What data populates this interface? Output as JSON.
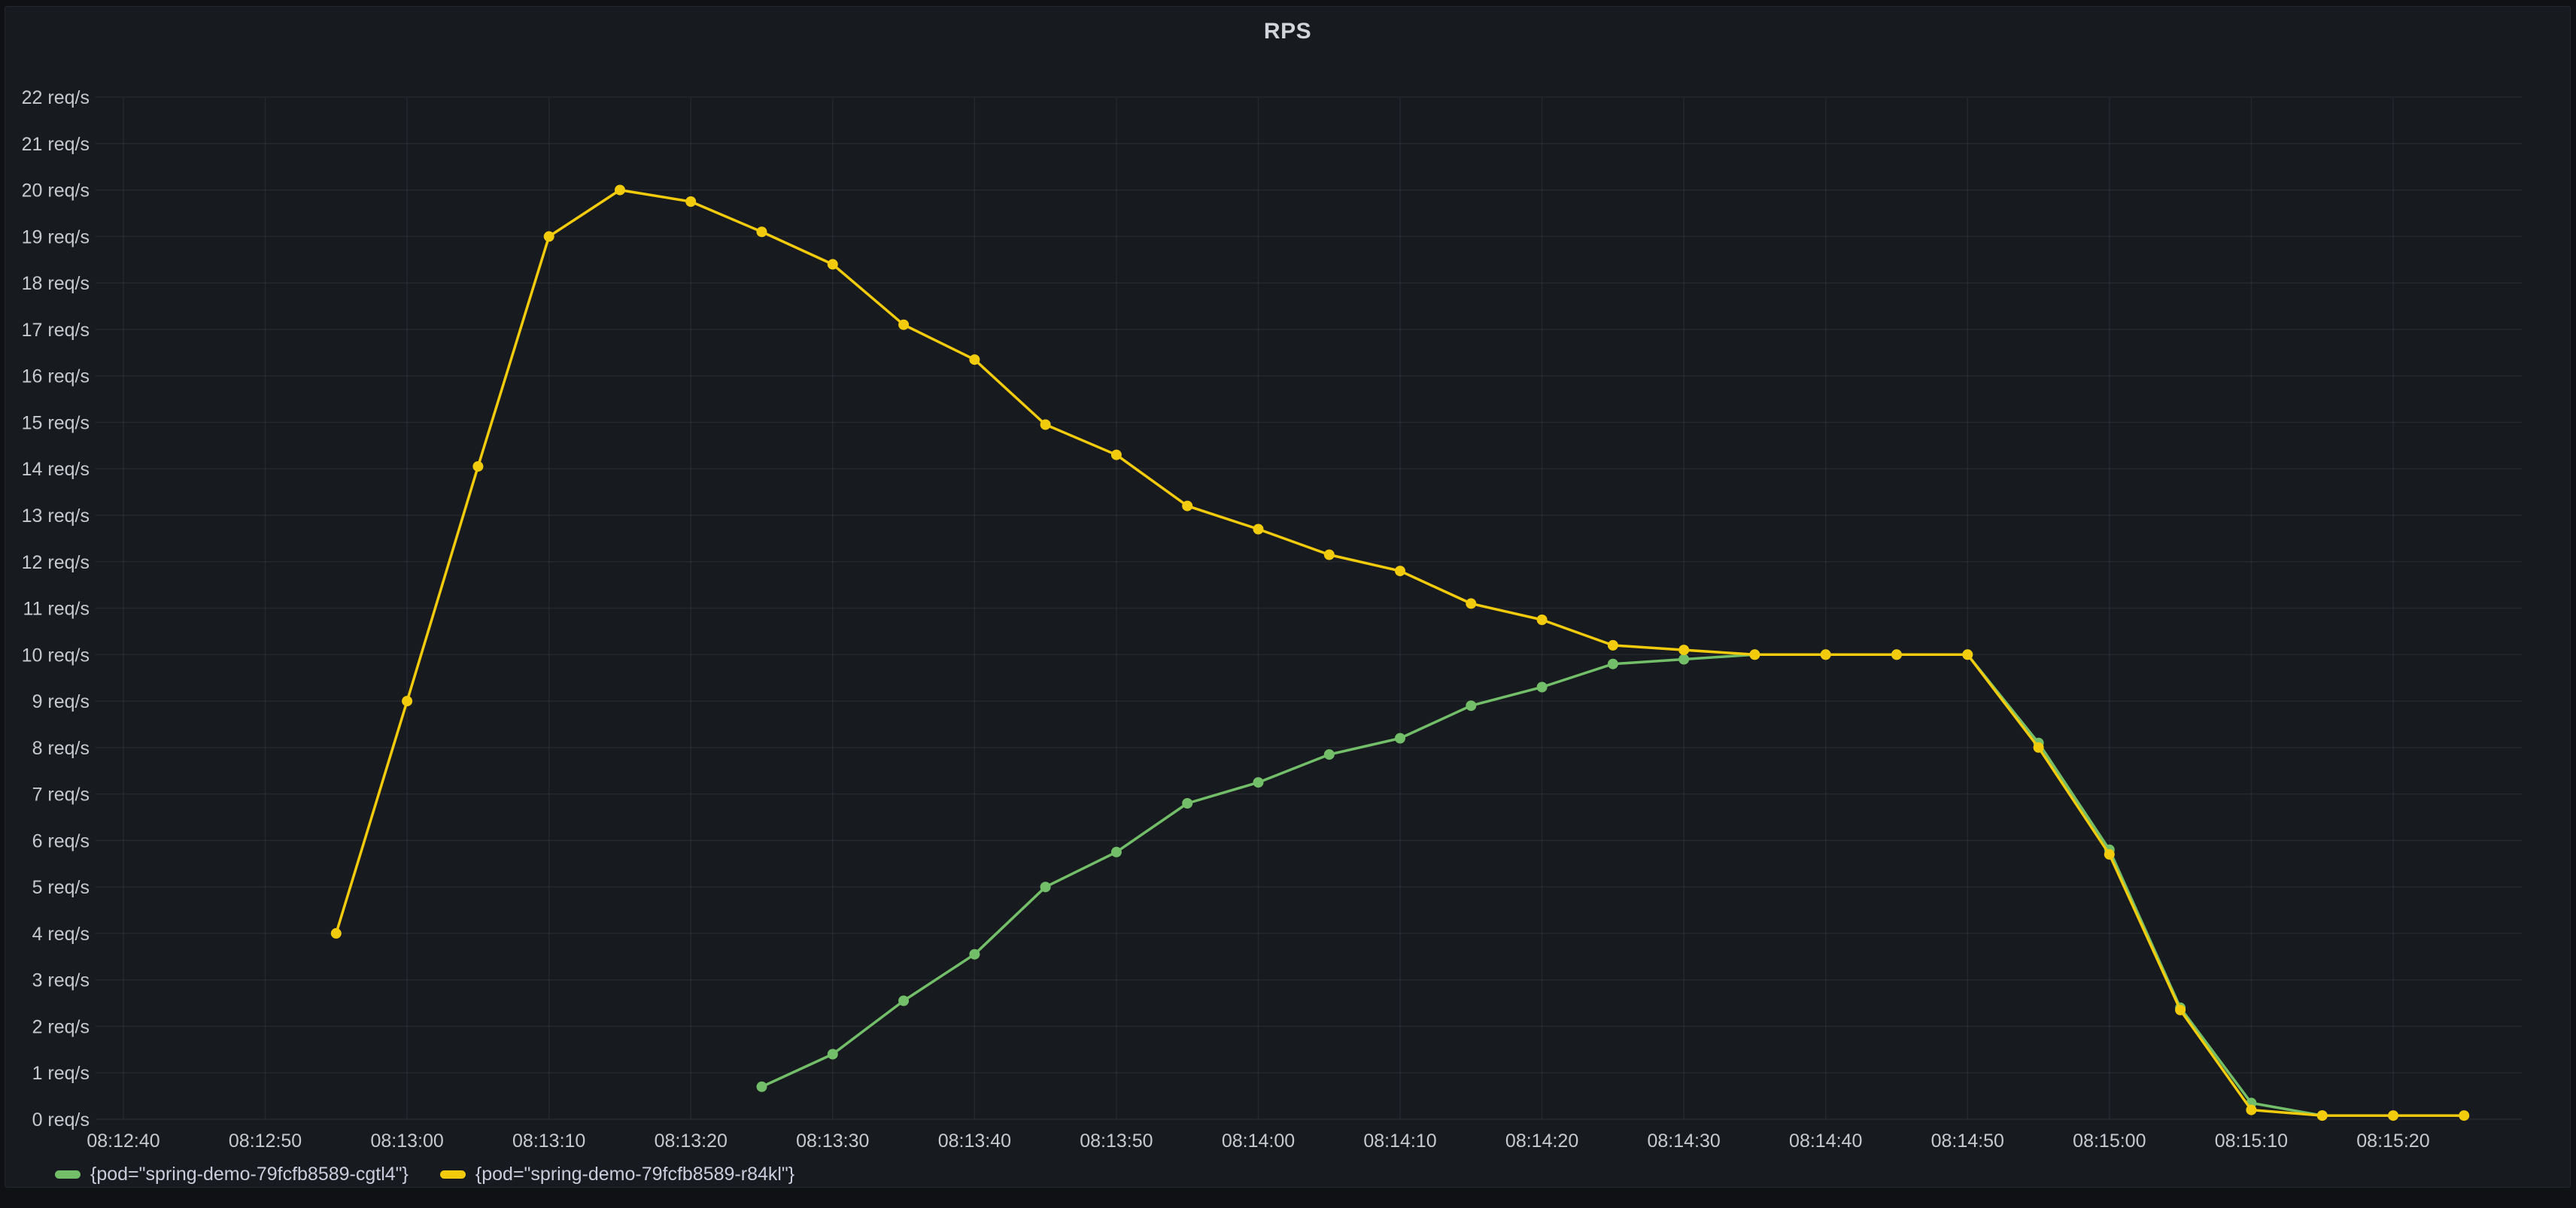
{
  "panel": {
    "title": "RPS"
  },
  "colors": {
    "page_background": "#0f1115",
    "panel_background": "#171a1f",
    "panel_border": "#23262c",
    "grid": "rgba(204,204,220,0.08)",
    "tick_text": "#c7c9cf",
    "title_text": "#d3d5db",
    "series_green": "#73BF69",
    "series_yellow": "#F2CC0C"
  },
  "chart_data": {
    "type": "line",
    "title": "RPS",
    "unit": "req/s",
    "grid": true,
    "legend_position": "bottom-left",
    "ylim": [
      0,
      22
    ],
    "y_ticks": [
      "0 req/s",
      "1 req/s",
      "2 req/s",
      "3 req/s",
      "4 req/s",
      "5 req/s",
      "6 req/s",
      "7 req/s",
      "8 req/s",
      "9 req/s",
      "10 req/s",
      "11 req/s",
      "12 req/s",
      "13 req/s",
      "14 req/s",
      "15 req/s",
      "16 req/s",
      "17 req/s",
      "18 req/s",
      "19 req/s",
      "20 req/s",
      "21 req/s",
      "22 req/s"
    ],
    "x_ticks": [
      "08:12:40",
      "08:12:50",
      "08:13:00",
      "08:13:10",
      "08:13:20",
      "08:13:30",
      "08:13:40",
      "08:13:50",
      "08:14:00",
      "08:14:10",
      "08:14:20",
      "08:14:30",
      "08:14:40",
      "08:14:50",
      "08:15:00",
      "08:15:10",
      "08:15:20"
    ],
    "series": [
      {
        "name": "{pod=\"spring-demo-79fcfb8589-cgtl4\"}",
        "color": "#73BF69",
        "points": [
          [
            "08:13:25",
            0.7
          ],
          [
            "08:13:30",
            1.4
          ],
          [
            "08:13:35",
            2.55
          ],
          [
            "08:13:40",
            3.55
          ],
          [
            "08:13:45",
            5.0
          ],
          [
            "08:13:50",
            5.75
          ],
          [
            "08:13:55",
            6.8
          ],
          [
            "08:14:00",
            7.25
          ],
          [
            "08:14:05",
            7.85
          ],
          [
            "08:14:10",
            8.2
          ],
          [
            "08:14:15",
            8.9
          ],
          [
            "08:14:20",
            9.3
          ],
          [
            "08:14:25",
            9.8
          ],
          [
            "08:14:30",
            9.9
          ],
          [
            "08:14:35",
            10.0
          ],
          [
            "08:14:40",
            10.0
          ],
          [
            "08:14:45",
            10.0
          ],
          [
            "08:14:50",
            10.0
          ],
          [
            "08:14:55",
            8.1
          ],
          [
            "08:15:00",
            5.8
          ],
          [
            "08:15:05",
            2.4
          ],
          [
            "08:15:10",
            0.35
          ],
          [
            "08:15:15",
            0.08
          ]
        ]
      },
      {
        "name": "{pod=\"spring-demo-79fcfb8589-r84kl\"}",
        "color": "#F2CC0C",
        "points": [
          [
            "08:12:55",
            4.0
          ],
          [
            "08:13:00",
            9.0
          ],
          [
            "08:13:05",
            14.05
          ],
          [
            "08:13:10",
            19.0
          ],
          [
            "08:13:15",
            20.0
          ],
          [
            "08:13:20",
            19.75
          ],
          [
            "08:13:25",
            19.1
          ],
          [
            "08:13:30",
            18.4
          ],
          [
            "08:13:35",
            17.1
          ],
          [
            "08:13:40",
            16.35
          ],
          [
            "08:13:45",
            14.95
          ],
          [
            "08:13:50",
            14.3
          ],
          [
            "08:13:55",
            13.2
          ],
          [
            "08:14:00",
            12.7
          ],
          [
            "08:14:05",
            12.15
          ],
          [
            "08:14:10",
            11.8
          ],
          [
            "08:14:15",
            11.1
          ],
          [
            "08:14:20",
            10.75
          ],
          [
            "08:14:25",
            10.2
          ],
          [
            "08:14:30",
            10.1
          ],
          [
            "08:14:35",
            10.0
          ],
          [
            "08:14:40",
            10.0
          ],
          [
            "08:14:45",
            10.0
          ],
          [
            "08:14:50",
            10.0
          ],
          [
            "08:14:55",
            8.0
          ],
          [
            "08:15:00",
            5.7
          ],
          [
            "08:15:05",
            2.35
          ],
          [
            "08:15:10",
            0.2
          ],
          [
            "08:15:15",
            0.08
          ],
          [
            "08:15:20",
            0.08
          ],
          [
            "08:15:25",
            0.08
          ]
        ]
      }
    ]
  }
}
